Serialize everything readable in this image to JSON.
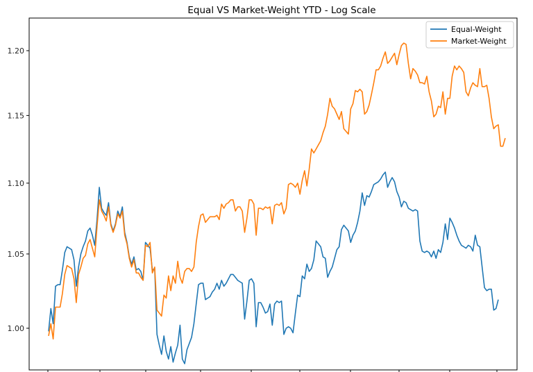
{
  "chart_data": {
    "type": "line",
    "title": "Equal VS Market-Weight YTD - Log Scale",
    "xlabel": "",
    "ylabel": "",
    "yscale": "log",
    "ylim": [
      0.973,
      1.226
    ],
    "yticks": [
      "1.00",
      "1.05",
      "1.10",
      "1.15",
      "1.20"
    ],
    "x_tick_labels": "",
    "grid": false,
    "legend": "top-right",
    "series": [
      {
        "name": "Equal-Weight",
        "color": "#1f77b4",
        "values": [
          0.998,
          1.013,
          1.003,
          1.028,
          1.029,
          1.029,
          1.039,
          1.051,
          1.055,
          1.054,
          1.053,
          1.046,
          1.028,
          1.041,
          1.05,
          1.055,
          1.059,
          1.066,
          1.068,
          1.063,
          1.056,
          1.074,
          1.097,
          1.082,
          1.079,
          1.077,
          1.086,
          1.071,
          1.066,
          1.071,
          1.08,
          1.076,
          1.083,
          1.065,
          1.058,
          1.048,
          1.043,
          1.048,
          1.039,
          1.04,
          1.038,
          1.032,
          1.058,
          1.056,
          1.054,
          1.039,
          1.04,
          0.996,
          0.989,
          0.983,
          0.995,
          0.985,
          0.98,
          0.988,
          0.978,
          0.984,
          0.989,
          1.002,
          0.98,
          0.977,
          0.986,
          0.99,
          0.994,
          1.003,
          1.016,
          1.029,
          1.03,
          1.03,
          1.019,
          1.02,
          1.021,
          1.024,
          1.026,
          1.03,
          1.026,
          1.032,
          1.028,
          1.03,
          1.033,
          1.036,
          1.036,
          1.034,
          1.032,
          1.031,
          1.03,
          1.006,
          1.018,
          1.032,
          1.033,
          1.03,
          1.001,
          1.017,
          1.017,
          1.014,
          1.01,
          1.011,
          1.016,
          1.002,
          1.016,
          1.018,
          1.017,
          1.018,
          0.996,
          1.0,
          1.001,
          1.0,
          0.997,
          1.01,
          1.022,
          1.021,
          1.035,
          1.033,
          1.043,
          1.038,
          1.04,
          1.046,
          1.059,
          1.057,
          1.055,
          1.048,
          1.047,
          1.034,
          1.038,
          1.041,
          1.047,
          1.053,
          1.055,
          1.067,
          1.07,
          1.068,
          1.066,
          1.058,
          1.063,
          1.066,
          1.072,
          1.08,
          1.093,
          1.084,
          1.091,
          1.09,
          1.094,
          1.099,
          1.1,
          1.101,
          1.103,
          1.106,
          1.108,
          1.097,
          1.101,
          1.104,
          1.101,
          1.094,
          1.09,
          1.083,
          1.087,
          1.086,
          1.082,
          1.081,
          1.08,
          1.081,
          1.08,
          1.059,
          1.052,
          1.051,
          1.052,
          1.051,
          1.048,
          1.052,
          1.047,
          1.053,
          1.051,
          1.058,
          1.071,
          1.06,
          1.075,
          1.072,
          1.068,
          1.063,
          1.059,
          1.056,
          1.055,
          1.054,
          1.056,
          1.055,
          1.052,
          1.063,
          1.056,
          1.055,
          1.041,
          1.027,
          1.025,
          1.026,
          1.026,
          1.012,
          1.013,
          1.019
        ]
      },
      {
        "name": "Market-Weight",
        "color": "#ff7f0e",
        "values": [
          0.995,
          1.003,
          0.993,
          1.014,
          1.014,
          1.014,
          1.023,
          1.036,
          1.042,
          1.041,
          1.04,
          1.033,
          1.017,
          1.036,
          1.041,
          1.047,
          1.049,
          1.057,
          1.06,
          1.054,
          1.048,
          1.069,
          1.088,
          1.08,
          1.077,
          1.073,
          1.083,
          1.07,
          1.065,
          1.07,
          1.078,
          1.075,
          1.08,
          1.063,
          1.057,
          1.047,
          1.041,
          1.046,
          1.037,
          1.037,
          1.034,
          1.032,
          1.056,
          1.055,
          1.058,
          1.037,
          1.041,
          1.012,
          1.01,
          1.008,
          1.022,
          1.02,
          1.035,
          1.025,
          1.035,
          1.03,
          1.045,
          1.034,
          1.03,
          1.038,
          1.04,
          1.04,
          1.038,
          1.041,
          1.058,
          1.069,
          1.077,
          1.078,
          1.072,
          1.074,
          1.076,
          1.076,
          1.076,
          1.077,
          1.074,
          1.085,
          1.082,
          1.085,
          1.086,
          1.088,
          1.088,
          1.08,
          1.083,
          1.083,
          1.08,
          1.065,
          1.075,
          1.088,
          1.088,
          1.085,
          1.063,
          1.082,
          1.082,
          1.081,
          1.083,
          1.082,
          1.083,
          1.071,
          1.084,
          1.085,
          1.084,
          1.086,
          1.078,
          1.082,
          1.099,
          1.1,
          1.099,
          1.097,
          1.1,
          1.092,
          1.102,
          1.109,
          1.098,
          1.11,
          1.125,
          1.122,
          1.125,
          1.128,
          1.131,
          1.137,
          1.142,
          1.151,
          1.163,
          1.157,
          1.155,
          1.151,
          1.147,
          1.153,
          1.14,
          1.138,
          1.136,
          1.155,
          1.159,
          1.169,
          1.168,
          1.17,
          1.168,
          1.151,
          1.153,
          1.158,
          1.166,
          1.175,
          1.185,
          1.185,
          1.188,
          1.194,
          1.199,
          1.19,
          1.192,
          1.195,
          1.198,
          1.189,
          1.197,
          1.204,
          1.206,
          1.205,
          1.19,
          1.178,
          1.186,
          1.184,
          1.181,
          1.175,
          1.175,
          1.174,
          1.18,
          1.168,
          1.161,
          1.149,
          1.151,
          1.157,
          1.156,
          1.168,
          1.151,
          1.163,
          1.163,
          1.18,
          1.188,
          1.185,
          1.188,
          1.186,
          1.183,
          1.168,
          1.165,
          1.171,
          1.175,
          1.173,
          1.172,
          1.186,
          1.172,
          1.172,
          1.173,
          1.163,
          1.149,
          1.14,
          1.142,
          1.143,
          1.127,
          1.127,
          1.133
        ]
      }
    ]
  }
}
